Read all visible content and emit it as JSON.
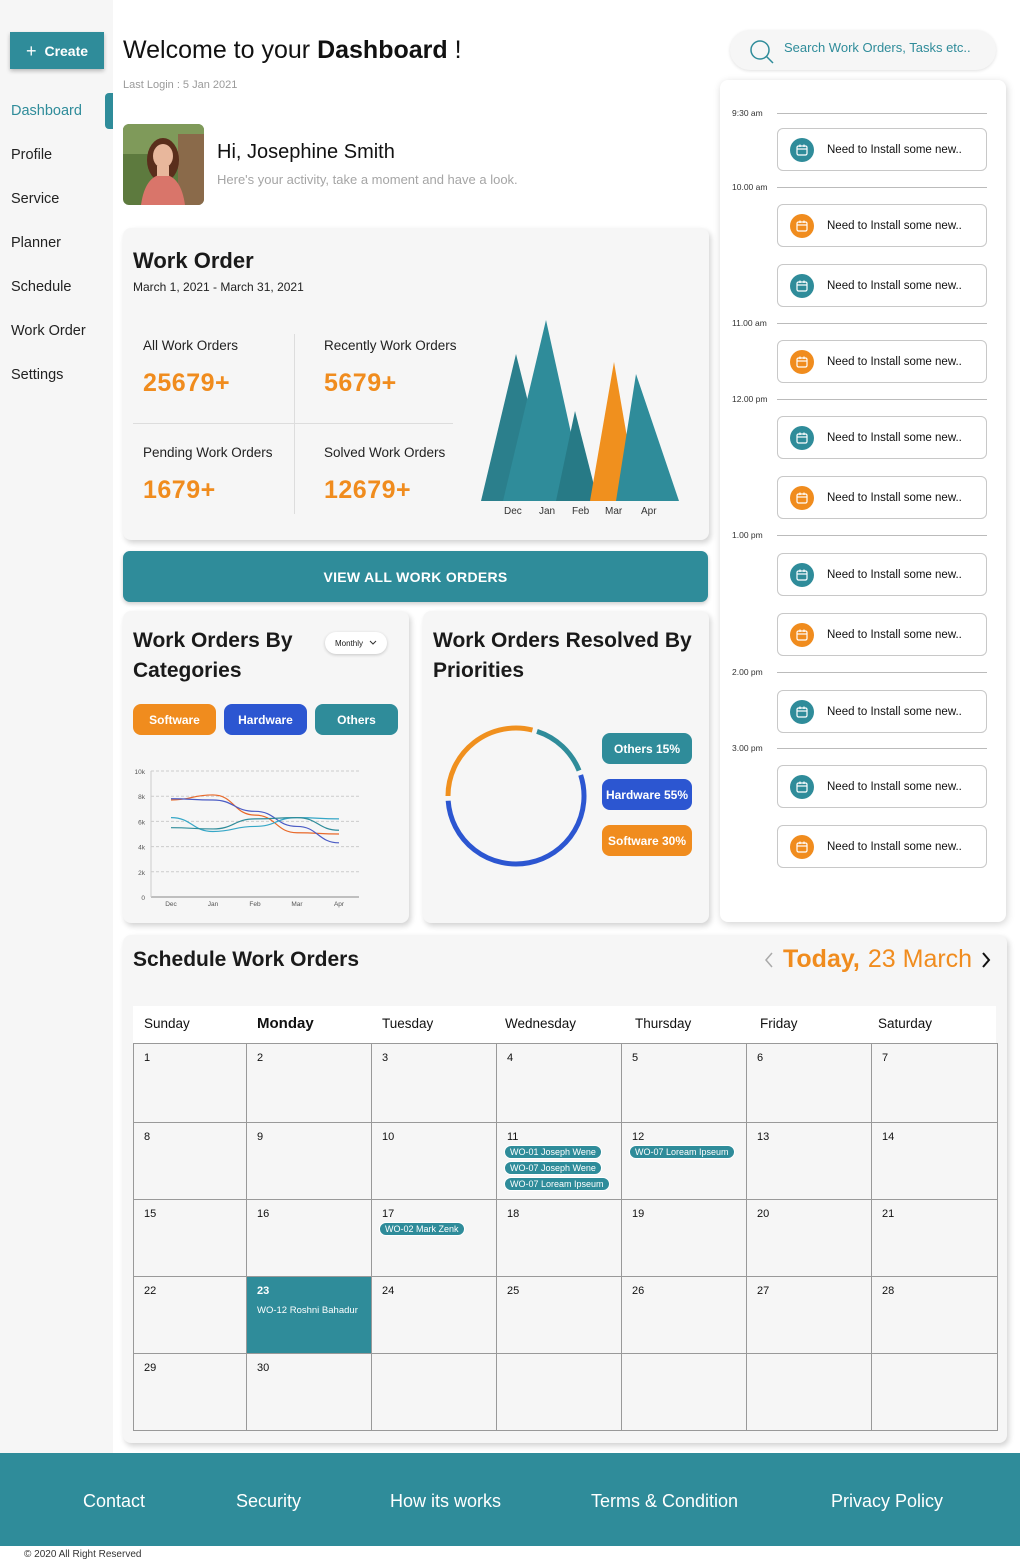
{
  "sidebar": {
    "create_label": "Create",
    "items": [
      {
        "label": "Dashboard"
      },
      {
        "label": "Profile"
      },
      {
        "label": "Service"
      },
      {
        "label": "Planner"
      },
      {
        "label": "Schedule"
      },
      {
        "label": "Work Order"
      },
      {
        "label": "Settings"
      }
    ]
  },
  "header": {
    "welcome": "Welcome to your ",
    "welcome_bold": "Dashboard",
    "welcome_end": " !",
    "last_login": "Last Login : 5 Jan 2021",
    "greeting": "Hi, Josephine Smith",
    "greeting_sub": "Here's your activity, take a moment and have a look.",
    "search_placeholder": "Search Work Orders, Tasks etc.."
  },
  "work_order": {
    "title": "Work Order",
    "range": "March 1, 2021 - March 31, 2021",
    "stats": [
      {
        "label": "All Work Orders",
        "value": "25679+"
      },
      {
        "label": "Recently Work Orders",
        "value": "5679+"
      },
      {
        "label": "Pending Work Orders",
        "value": "1679+"
      },
      {
        "label": "Solved Work Orders",
        "value": "12679+"
      }
    ],
    "months": [
      "Dec",
      "Jan",
      "Feb",
      "Mar",
      "Apr"
    ],
    "view_all": "VIEW ALL WORK ORDERS"
  },
  "categories": {
    "title_1": "Work Orders By",
    "title_2": "Categories",
    "dropdown": "Monthly",
    "pills": [
      "Software",
      "Hardware",
      "Others"
    ]
  },
  "chart_data": {
    "type": "line",
    "x": [
      "Dec",
      "Jan",
      "Feb",
      "Mar",
      "Apr"
    ],
    "ylim": [
      0,
      10000
    ],
    "yticks": [
      "0",
      "2k",
      "4k",
      "6k",
      "8k",
      "10k"
    ],
    "series": [
      {
        "values": [
          7700,
          8100,
          6500,
          5100,
          5000
        ]
      },
      {
        "values": [
          7800,
          7700,
          6800,
          5600,
          4300
        ]
      },
      {
        "values": [
          6300,
          5200,
          5600,
          6300,
          6200
        ]
      },
      {
        "values": [
          5500,
          5400,
          6200,
          6300,
          5300
        ]
      }
    ],
    "grid": true
  },
  "priorities": {
    "title_1": "Work Orders Resolved By",
    "title_2": "Priorities",
    "pills": [
      "Others 15%",
      "Hardware 55%",
      "Software 30%"
    ],
    "donut": [
      {
        "label": "Others",
        "percent": 15,
        "color": "#2f8c9a"
      },
      {
        "label": "Hardware",
        "percent": 55,
        "color": "#2c56d1"
      },
      {
        "label": "Software",
        "percent": 30,
        "color": "#f0901e"
      }
    ]
  },
  "timeline": {
    "times": [
      "9:30 am",
      "10.00 am",
      "11.00 am",
      "12.00 pm",
      "1.00 pm",
      "2.00 pm",
      "3.00 pm"
    ],
    "tasks": [
      {
        "text": "Need to Install some new..",
        "color": "teal"
      },
      {
        "text": "Need to Install some new..",
        "color": "orange"
      },
      {
        "text": "Need to Install some new..",
        "color": "teal"
      },
      {
        "text": "Need to Install some new..",
        "color": "orange"
      },
      {
        "text": "Need to Install some new..",
        "color": "teal"
      },
      {
        "text": "Need to Install some new..",
        "color": "orange"
      },
      {
        "text": "Need to Install some new..",
        "color": "teal"
      },
      {
        "text": "Need to Install some new..",
        "color": "orange"
      },
      {
        "text": "Need to Install some new..",
        "color": "teal"
      },
      {
        "text": "Need to Install some new..",
        "color": "teal"
      },
      {
        "text": "Need to Install some new..",
        "color": "orange"
      }
    ]
  },
  "schedule": {
    "title": "Schedule Work Orders",
    "today_label": "Today,",
    "today_date": "23 March",
    "days": [
      "Sunday",
      "Monday",
      "Tuesday",
      "Wednesday",
      "Thursday",
      "Friday",
      "Saturday"
    ],
    "events": {
      "11": [
        "WO-01 Joseph Wene",
        "WO-07 Joseph Wene",
        "WO-07 Loream Ipseum"
      ],
      "12": [
        "WO-07 Loream Ipseum"
      ],
      "17": [
        "WO-02 Mark Zenk"
      ],
      "23": [
        "WO-12 Roshni Bahadur"
      ]
    },
    "today_day": "23"
  },
  "footer": {
    "links": [
      "Contact",
      "Security",
      "How its works",
      "Terms & Condition",
      "Privacy Policy"
    ],
    "copyright": "2020  All Right Reserved"
  },
  "colors": {
    "teal": "#2f8c9a",
    "orange": "#f08c1e",
    "blue": "#2c56d1"
  }
}
